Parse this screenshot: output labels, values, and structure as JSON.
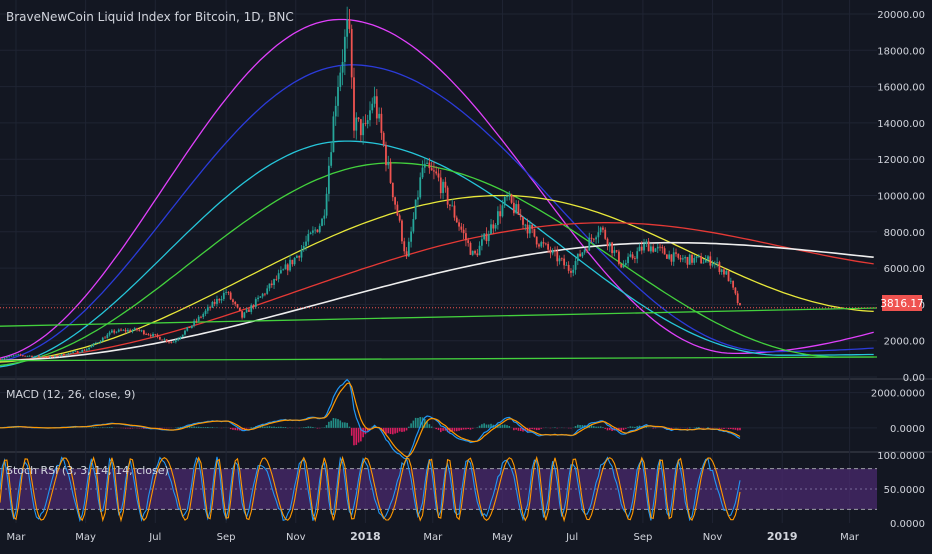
{
  "title": "BraveNewCoin Liquid Index for Bitcoin, 1D, BNC",
  "last_price": "3816.17",
  "colors": {
    "background": "#131722",
    "grid": "#1f2433",
    "text": "#d1d4dc",
    "up": "#26a69a",
    "down": "#ef5350",
    "price_label_bg": "#ef5350",
    "macd_line": "#2196f3",
    "signal_line": "#ff9800",
    "rsi_band": "#4a2a6e"
  },
  "x_axis_labels": [
    "Mar",
    "May",
    "Jul",
    "Sep",
    "Nov",
    "2018",
    "Mar",
    "May",
    "Jul",
    "Sep",
    "Nov",
    "2019",
    "Mar"
  ],
  "panes": {
    "price": {
      "ylim": [
        0,
        20000
      ],
      "tick_labels": [
        "20000.00",
        "18000.00",
        "16000.00",
        "14000.00",
        "12000.00",
        "10000.00",
        "8000.00",
        "6000.00",
        "4000.00",
        "2000.00",
        "0.00"
      ],
      "tick_values": [
        20000,
        18000,
        16000,
        14000,
        12000,
        10000,
        8000,
        6000,
        4000,
        2000,
        0
      ]
    },
    "macd": {
      "label": "MACD (12, 26, close, 9)",
      "ylim": [
        -1200,
        2600
      ],
      "tick_labels": [
        "2000.0000",
        "0.0000"
      ],
      "tick_values": [
        2000,
        0
      ]
    },
    "stoch_rsi": {
      "label": "Stoch RSI (3, 3, 14, 14, close)",
      "ylim": [
        0,
        100
      ],
      "band": [
        20,
        80
      ],
      "tick_labels": [
        "100.0000",
        "50.0000",
        "0.0000"
      ],
      "tick_values": [
        100,
        50,
        0
      ]
    }
  },
  "chart_data": {
    "type": "line",
    "title": "BraveNewCoin Liquid Index for Bitcoin, 1D, BNC",
    "xlabel": "",
    "ylabel": "",
    "ylim": [
      0,
      20000
    ],
    "x": [
      "2017-02-15",
      "2017-03-01",
      "2017-04-01",
      "2017-05-01",
      "2017-05-25",
      "2017-06-15",
      "2017-07-16",
      "2017-08-01",
      "2017-09-01",
      "2017-09-15",
      "2017-10-01",
      "2017-11-01",
      "2017-11-25",
      "2017-12-07",
      "2017-12-17",
      "2017-12-22",
      "2018-01-01",
      "2018-01-08",
      "2018-02-06",
      "2018-02-20",
      "2018-03-05",
      "2018-04-06",
      "2018-05-05",
      "2018-06-01",
      "2018-06-29",
      "2018-07-25",
      "2018-08-14",
      "2018-09-04",
      "2018-10-01",
      "2018-11-01",
      "2018-11-14",
      "2018-11-25"
    ],
    "series": [
      {
        "values": [
          1000,
          1200,
          1100,
          1500,
          2500,
          2600,
          1900,
          2800,
          4700,
          3300,
          4400,
          6600,
          8700,
          16000,
          19500,
          14000,
          13500,
          15500,
          6500,
          11500,
          11000,
          6600,
          9800,
          7500,
          5900,
          8300,
          6100,
          7300,
          6500,
          6400,
          5600,
          3800
        ]
      }
    ],
    "overlay_curves": [
      {
        "color": "#e040fb",
        "peak": 19700
      },
      {
        "color": "#2b3bd9",
        "peak": 17200
      },
      {
        "color": "#26c6da",
        "peak": 13000
      },
      {
        "color": "#43d13d",
        "peak": 11800
      },
      {
        "color": "#e8e83a",
        "peak": 10000
      },
      {
        "color": "#e53935",
        "peak": 8500
      },
      {
        "color": "#eeeeee",
        "peak": 7400
      }
    ],
    "flat_lines": [
      {
        "color": "#43d13d",
        "start": 2800,
        "end": 3800
      },
      {
        "color": "#43d13d",
        "start": 900,
        "end": 1100
      }
    ],
    "last_price": 3816.17,
    "grid": true,
    "legend": "none"
  }
}
